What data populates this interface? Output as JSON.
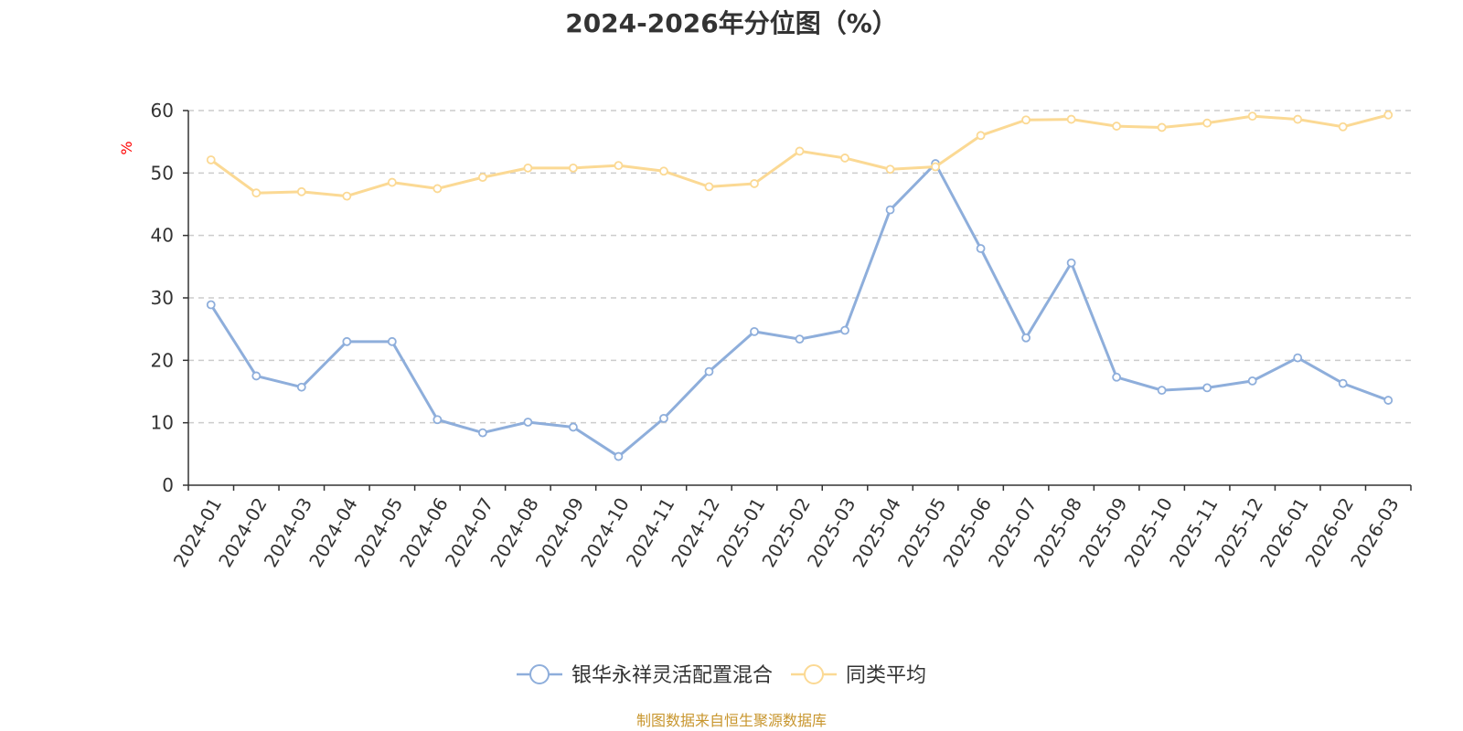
{
  "chart_data": {
    "type": "line",
    "title": "2024-2026年分位图（%）",
    "ylabel": "%",
    "xlabel": "",
    "ylim": [
      0,
      60
    ],
    "yticks": [
      0,
      10,
      20,
      30,
      40,
      50,
      60
    ],
    "grid": "horizontal-dashed",
    "legend_position": "bottom",
    "categories": [
      "2024-01",
      "2024-02",
      "2024-03",
      "2024-04",
      "2024-05",
      "2024-06",
      "2024-07",
      "2024-08",
      "2024-09",
      "2024-10",
      "2024-11",
      "2024-12",
      "2025-01",
      "2025-02",
      "2025-03",
      "2025-04",
      "2025-05",
      "2025-06",
      "2025-07",
      "2025-08",
      "2025-09",
      "2025-10",
      "2025-11",
      "2025-12",
      "2026-01",
      "2026-02",
      "2026-03"
    ],
    "series": [
      {
        "name": "银华永祥灵活配置混合",
        "color": "#8eaedb",
        "values": [
          28.9,
          17.5,
          15.7,
          23.0,
          23.0,
          10.5,
          8.4,
          10.1,
          9.3,
          4.6,
          10.7,
          18.2,
          24.6,
          23.4,
          24.8,
          44.1,
          51.5,
          37.9,
          23.6,
          35.6,
          17.3,
          15.2,
          15.6,
          16.7,
          20.4,
          16.3,
          13.6
        ]
      },
      {
        "name": "同类平均",
        "color": "#fbd994",
        "values": [
          52.1,
          46.8,
          47.0,
          46.3,
          48.5,
          47.5,
          49.3,
          50.8,
          50.8,
          51.2,
          50.3,
          47.8,
          48.3,
          53.5,
          52.4,
          50.6,
          51.0,
          56.0,
          58.5,
          58.6,
          57.5,
          57.3,
          58.0,
          59.1,
          58.6,
          57.4,
          59.3
        ]
      }
    ]
  },
  "footer": {
    "source": "制图数据来自恒生聚源数据库"
  }
}
